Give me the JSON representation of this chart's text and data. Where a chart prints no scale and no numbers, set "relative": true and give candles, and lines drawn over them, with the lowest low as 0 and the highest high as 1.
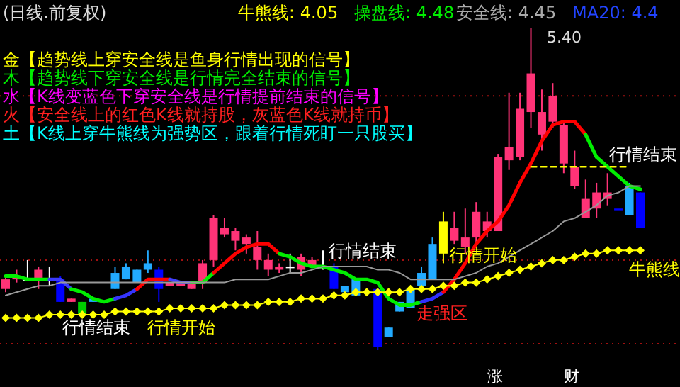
{
  "chart_data": {
    "type": "candlestick",
    "relative": true,
    "title": "(日线.前复权)",
    "categories": [
      null,
      null,
      null,
      null,
      null,
      null,
      null,
      null,
      null,
      null,
      null,
      null,
      null,
      null,
      null,
      null,
      null,
      null,
      null,
      null,
      null,
      null,
      null,
      null,
      null,
      null,
      null,
      null,
      null,
      null,
      null,
      null,
      null,
      null,
      null,
      null,
      null,
      null,
      null,
      null,
      null,
      null,
      null,
      null,
      null,
      null,
      null,
      null,
      null,
      null,
      null,
      null,
      null,
      null,
      null,
      null,
      null,
      null,
      null
    ],
    "ohlc": [
      [
        0.19,
        0.23,
        0.18,
        0.22
      ],
      [
        0.22,
        0.25,
        0.21,
        0.23
      ],
      [
        0.22,
        0.28,
        0.22,
        0.22
      ],
      [
        0.22,
        0.26,
        0.19,
        0.25
      ],
      [
        0.22,
        0.26,
        0.2,
        0.22
      ],
      [
        0.22,
        0.23,
        0.15,
        0.15
      ],
      [
        0.15,
        0.16,
        0.15,
        0.16
      ],
      [
        0.15,
        0.15,
        0.11,
        0.11
      ],
      [
        0.16,
        0.16,
        0.15,
        0.15
      ],
      null,
      [
        0.24,
        0.26,
        0.19,
        0.19
      ],
      [
        0.26,
        0.27,
        0.22,
        0.22
      ],
      [
        0.25,
        0.25,
        0.21,
        0.21
      ],
      [
        0.27,
        0.31,
        0.24,
        0.25
      ],
      [
        0.25,
        0.26,
        0.15,
        0.19
      ],
      [
        0.2,
        0.21,
        0.2,
        0.21
      ],
      [
        0.2,
        0.21,
        0.2,
        0.21
      ],
      [
        0.19,
        0.21,
        0.19,
        0.21
      ],
      [
        0.21,
        0.28,
        0.19,
        0.27
      ],
      [
        0.28,
        0.42,
        0.26,
        0.41
      ],
      [
        0.36,
        0.41,
        0.35,
        0.38
      ],
      [
        0.34,
        0.38,
        0.31,
        0.37
      ],
      [
        0.33,
        0.36,
        0.3,
        0.35
      ],
      [
        0.28,
        0.37,
        0.25,
        0.32
      ],
      [
        0.25,
        0.3,
        0.23,
        0.28
      ],
      [
        0.25,
        0.27,
        0.24,
        0.26
      ],
      [
        0.26,
        0.3,
        0.24,
        0.26
      ],
      [
        0.25,
        0.3,
        0.23,
        0.29
      ],
      [
        0.26,
        0.29,
        0.26,
        0.28
      ],
      [
        0.26,
        0.31,
        0.25,
        0.26
      ],
      [
        0.26,
        0.27,
        0.19,
        0.19
      ],
      [
        0.2,
        0.2,
        0.18,
        0.18
      ],
      [
        0.22,
        0.22,
        0.17,
        0.17
      ],
      null,
      [
        0.19,
        0.19,
        0.0,
        0.01
      ],
      [
        0.07,
        0.07,
        0.04,
        0.04
      ],
      [
        0.15,
        0.15,
        0.12,
        0.12
      ],
      [
        0.19,
        0.19,
        0.13,
        0.13
      ],
      [
        0.24,
        0.26,
        0.2,
        0.2
      ],
      [
        0.33,
        0.35,
        0.22,
        0.22
      ],
      [
        0.3,
        0.43,
        0.27,
        0.4
      ],
      [
        0.34,
        0.43,
        0.33,
        0.38
      ],
      [
        0.32,
        0.44,
        0.3,
        0.35
      ],
      [
        0.35,
        0.46,
        0.33,
        0.43
      ],
      [
        0.37,
        0.43,
        0.35,
        0.4
      ],
      [
        0.37,
        0.61,
        0.37,
        0.6
      ],
      [
        0.59,
        0.8,
        0.56,
        0.63
      ],
      [
        0.6,
        0.8,
        0.59,
        0.75
      ],
      [
        0.74,
        1.0,
        0.69,
        0.86
      ],
      [
        0.67,
        0.81,
        0.62,
        0.74
      ],
      [
        0.71,
        0.83,
        0.69,
        0.79
      ],
      [
        0.58,
        0.71,
        0.55,
        0.7
      ],
      [
        0.51,
        0.62,
        0.5,
        0.57
      ],
      [
        0.41,
        0.53,
        0.41,
        0.47
      ],
      [
        0.44,
        0.52,
        0.41,
        0.49
      ],
      [
        0.47,
        0.55,
        0.45,
        0.49
      ],
      [
        0.44,
        0.44,
        0.44,
        0.44
      ],
      [
        0.51,
        0.52,
        0.42,
        0.42
      ],
      [
        0.49,
        0.49,
        0.38,
        0.38
      ]
    ],
    "colors": [
      "#ff3377",
      "#ff3377",
      "#ffffff",
      "#ff3377",
      "#ffffff",
      "#0000ff",
      "#ff3377",
      "#00cc00",
      "#22aaff",
      null,
      "#22aaff",
      "#22aaff",
      "#22aaff",
      "#22aaff",
      "#0000ff",
      "#ff3377",
      "#ff3377",
      "#ff3377",
      "#ff3377",
      "#ff3377",
      "#ff3377",
      "#ff3377",
      "#ff3377",
      "#ff3377",
      "#ff3377",
      "#ff3377",
      "#ffffff",
      "#ff3377",
      "#ff3377",
      "#ffffff",
      "#0000ff",
      "#22aaff",
      "#22aaff",
      null,
      "#0000ff",
      "#22aaff",
      "#22aaff",
      "#22aaff",
      "#22aaff",
      "#22aaff",
      "#ffff00",
      "#ff3377",
      "#ff3377",
      "#ff3377",
      "#ff3377",
      "#ff3377",
      "#ff3377",
      "#ff3377",
      "#ff3377",
      "#ff3377",
      "#ff3377",
      "#ff3377",
      "#ff3377",
      "#ff3377",
      "#ff3377",
      "#ff3377",
      "#0000ff",
      "#22aaff",
      "#0000ff"
    ],
    "series": [
      {
        "type": "line",
        "color": "#00ee00",
        "values": [
          0.23,
          0.23,
          0.22,
          0.22,
          0.22,
          null,
          null,
          null,
          null,
          null,
          null,
          null,
          null,
          null,
          null,
          null,
          null,
          null,
          null,
          null,
          null,
          null,
          null,
          null,
          null,
          null,
          null,
          null,
          null,
          null,
          null,
          null,
          null,
          null,
          null,
          null,
          null,
          null,
          null,
          null,
          null,
          null,
          null,
          null,
          null,
          null,
          null,
          null,
          null,
          null,
          null,
          null,
          null,
          null,
          null,
          null,
          null,
          null,
          null
        ]
      },
      {
        "type": "line",
        "color": "#3a3aff",
        "values": [
          null,
          null,
          null,
          null,
          0.22,
          0.22,
          0.19,
          null,
          null,
          null,
          null,
          null,
          null,
          null,
          null,
          null,
          null,
          null,
          null,
          null,
          null,
          null,
          null,
          null,
          null,
          null,
          null,
          null,
          null,
          null,
          null,
          null,
          null,
          null,
          null,
          null,
          null,
          null,
          null,
          null,
          null,
          null,
          null,
          null,
          null,
          null,
          null,
          null,
          null,
          null,
          null,
          null,
          null,
          null,
          null,
          null,
          null,
          null,
          null
        ]
      },
      {
        "type": "line",
        "color": "#00ee00",
        "values": [
          null,
          null,
          null,
          null,
          null,
          null,
          0.19,
          0.18,
          0.16,
          0.15,
          0.16,
          null,
          null,
          null,
          null,
          null,
          null,
          null,
          null,
          null,
          null,
          null,
          null,
          null,
          null,
          null,
          null,
          null,
          null,
          null,
          null,
          null,
          null,
          null,
          null,
          null,
          null,
          null,
          null,
          null,
          null,
          null,
          null,
          null,
          null,
          null,
          null,
          null,
          null,
          null,
          null,
          null,
          null,
          null,
          null,
          null,
          null,
          null,
          null
        ]
      },
      {
        "type": "line",
        "color": "#3535ff",
        "values": [
          null,
          null,
          null,
          null,
          null,
          null,
          null,
          null,
          null,
          null,
          0.16,
          0.17,
          0.19,
          null,
          null,
          null,
          null,
          null,
          null,
          null,
          null,
          null,
          null,
          null,
          null,
          null,
          null,
          null,
          null,
          null,
          null,
          null,
          null,
          null,
          null,
          null,
          null,
          null,
          null,
          null,
          null,
          null,
          null,
          null,
          null,
          null,
          null,
          null,
          null,
          null,
          null,
          null,
          null,
          null,
          null,
          null,
          null,
          null,
          null
        ]
      },
      {
        "type": "line",
        "color": "#ff0000",
        "values": [
          null,
          null,
          null,
          null,
          null,
          null,
          null,
          null,
          null,
          null,
          null,
          null,
          0.19,
          0.22,
          0.22,
          0.22,
          null,
          null,
          null,
          null,
          null,
          null,
          null,
          null,
          null,
          null,
          null,
          null,
          null,
          null,
          null,
          null,
          null,
          null,
          null,
          null,
          null,
          null,
          null,
          null,
          null,
          null,
          null,
          null,
          null,
          null,
          null,
          null,
          null,
          null,
          null,
          null,
          null,
          null,
          null,
          null,
          null,
          null,
          null
        ]
      },
      {
        "type": "line",
        "color": "#4040ff",
        "values": [
          null,
          null,
          null,
          null,
          null,
          null,
          null,
          null,
          null,
          null,
          null,
          null,
          null,
          null,
          null,
          0.22,
          0.21,
          0.21,
          null,
          null,
          null,
          null,
          null,
          null,
          null,
          null,
          null,
          null,
          null,
          null,
          null,
          null,
          null,
          null,
          null,
          null,
          null,
          null,
          null,
          null,
          null,
          null,
          null,
          null,
          null,
          null,
          null,
          null,
          null,
          null,
          null,
          null,
          null,
          null,
          null,
          null,
          null,
          null,
          null
        ]
      },
      {
        "type": "line",
        "color": "#00ee00",
        "values": [
          null,
          null,
          null,
          null,
          null,
          null,
          null,
          null,
          null,
          null,
          null,
          null,
          null,
          null,
          null,
          null,
          null,
          0.21,
          0.21,
          0.24,
          null,
          null,
          null,
          null,
          null,
          null,
          null,
          null,
          null,
          null,
          null,
          null,
          null,
          null,
          null,
          null,
          null,
          null,
          null,
          null,
          null,
          null,
          null,
          null,
          null,
          null,
          null,
          null,
          null,
          null,
          null,
          null,
          null,
          null,
          null,
          null,
          null,
          null,
          null
        ]
      },
      {
        "type": "line",
        "color": "#ff0000",
        "values": [
          null,
          null,
          null,
          null,
          null,
          null,
          null,
          null,
          null,
          null,
          null,
          null,
          null,
          null,
          null,
          null,
          null,
          null,
          null,
          0.24,
          0.27,
          0.3,
          0.32,
          0.33,
          0.33,
          0.3,
          null,
          null,
          null,
          null,
          null,
          null,
          null,
          null,
          null,
          null,
          null,
          null,
          null,
          null,
          null,
          null,
          null,
          null,
          null,
          null,
          null,
          null,
          null,
          null,
          null,
          null,
          null,
          null,
          null,
          null,
          null,
          null,
          null
        ]
      },
      {
        "type": "line",
        "color": "#00ee00",
        "values": [
          null,
          null,
          null,
          null,
          null,
          null,
          null,
          null,
          null,
          null,
          null,
          null,
          null,
          null,
          null,
          null,
          null,
          null,
          null,
          null,
          null,
          null,
          null,
          null,
          null,
          0.3,
          0.29,
          0.27,
          0.26,
          0.26,
          0.25,
          0.24,
          0.22,
          0.22,
          0.21,
          0.16,
          0.14,
          0.14,
          0.15,
          null,
          null,
          null,
          null,
          null,
          null,
          null,
          null,
          null,
          null,
          null,
          null,
          null,
          null,
          null,
          null,
          null,
          null,
          null,
          null
        ]
      },
      {
        "type": "line",
        "color": "#3030ff",
        "values": [
          null,
          null,
          null,
          null,
          null,
          null,
          null,
          null,
          null,
          null,
          null,
          null,
          null,
          null,
          null,
          null,
          null,
          null,
          null,
          null,
          null,
          null,
          null,
          null,
          null,
          null,
          null,
          null,
          null,
          null,
          null,
          null,
          null,
          null,
          null,
          null,
          null,
          null,
          0.15,
          0.16,
          0.18,
          null,
          null,
          null,
          null,
          null,
          null,
          null,
          null,
          null,
          null,
          null,
          null,
          null,
          null,
          null,
          null,
          null,
          null
        ]
      },
      {
        "type": "line",
        "color": "#ff0000",
        "values": [
          null,
          null,
          null,
          null,
          null,
          null,
          null,
          null,
          null,
          null,
          null,
          null,
          null,
          null,
          null,
          null,
          null,
          null,
          null,
          null,
          null,
          null,
          null,
          null,
          null,
          null,
          null,
          null,
          null,
          null,
          null,
          null,
          null,
          null,
          null,
          null,
          null,
          null,
          null,
          null,
          0.18,
          0.22,
          0.27,
          0.33,
          0.37,
          0.4,
          0.45,
          0.52,
          0.58,
          0.65,
          0.7,
          0.71,
          0.71,
          0.67,
          null,
          null,
          null,
          null,
          null
        ]
      },
      {
        "type": "line",
        "color": "#00ee00",
        "values": [
          null,
          null,
          null,
          null,
          null,
          null,
          null,
          null,
          null,
          null,
          null,
          null,
          null,
          null,
          null,
          null,
          null,
          null,
          null,
          null,
          null,
          null,
          null,
          null,
          null,
          null,
          null,
          null,
          null,
          null,
          null,
          null,
          null,
          null,
          null,
          null,
          null,
          null,
          null,
          null,
          null,
          null,
          null,
          null,
          null,
          null,
          null,
          null,
          null,
          null,
          null,
          null,
          null,
          0.67,
          0.6,
          0.57,
          0.54,
          0.51,
          0.5
        ]
      },
      {
        "type": "line",
        "color": "#999999",
        "values": [
          0.17,
          0.18,
          0.19,
          0.2,
          0.2,
          0.21,
          0.21,
          0.21,
          0.21,
          0.21,
          0.21,
          0.21,
          0.21,
          0.21,
          0.21,
          0.21,
          0.21,
          0.21,
          0.21,
          0.21,
          0.21,
          0.22,
          0.22,
          0.22,
          0.22,
          0.23,
          0.24,
          0.24,
          0.25,
          0.26,
          0.26,
          0.26,
          0.26,
          0.26,
          0.25,
          0.25,
          0.24,
          0.22,
          0.22,
          0.22,
          0.22,
          0.22,
          0.23,
          0.24,
          0.26,
          0.27,
          0.29,
          0.31,
          0.33,
          0.35,
          0.37,
          0.4,
          0.41,
          0.43,
          0.45,
          0.48,
          0.49,
          0.51,
          0.51
        ]
      },
      {
        "type": "line",
        "color": "#ffff00",
        "marker": "diamond",
        "values": [
          0.1,
          0.1,
          0.1,
          0.1,
          0.11,
          0.11,
          0.11,
          0.11,
          0.11,
          0.11,
          0.12,
          0.12,
          0.12,
          0.12,
          0.12,
          0.13,
          0.13,
          0.13,
          0.13,
          0.13,
          0.14,
          0.14,
          0.14,
          0.14,
          0.15,
          0.15,
          0.15,
          0.16,
          0.16,
          0.16,
          0.17,
          0.17,
          0.18,
          0.18,
          0.18,
          0.18,
          0.18,
          0.19,
          0.19,
          0.19,
          0.2,
          0.2,
          0.21,
          0.21,
          0.22,
          0.23,
          0.24,
          0.25,
          0.26,
          0.27,
          0.28,
          0.28,
          0.29,
          0.3,
          0.3,
          0.31,
          0.31,
          0.31,
          0.31
        ]
      },
      {
        "type": "line",
        "color": "#ffff00",
        "line_style": "dashed",
        "values": [
          null,
          null,
          null,
          null,
          null,
          null,
          null,
          null,
          null,
          null,
          null,
          null,
          null,
          null,
          null,
          null,
          null,
          null,
          null,
          null,
          null,
          null,
          null,
          null,
          null,
          null,
          null,
          null,
          null,
          null,
          null,
          null,
          null,
          null,
          null,
          null,
          null,
          null,
          null,
          null,
          null,
          null,
          null,
          null,
          null,
          null,
          null,
          null,
          0.57,
          0.57,
          0.57,
          0.57,
          0.57,
          0.57,
          0.57,
          0.57,
          0.57,
          0.57,
          null
        ]
      }
    ],
    "ref_lines": [
      {
        "axis": "y",
        "value": 0.79,
        "color": "#a01010",
        "line_style": "dotted"
      },
      {
        "axis": "y",
        "value": 0.28,
        "color": "#a01010",
        "line_style": "dotted"
      },
      {
        "axis": "y",
        "value": 0.02,
        "color": "#a01010",
        "line_style": "dotted"
      }
    ],
    "annotations": [
      "牛熊线: 4.05",
      "操盘线: 4.48",
      "安全线: 4.45",
      "MA20: 4.4",
      "金【趋势线上穿安全线是鱼身行情出现的信号】",
      "木【趋势线下穿安全线是行情完全结束的信号】",
      "水【K线变蓝色下穿安全线是行情提前结束的信号】",
      "火【安全线上的红色K线就持股，灰蓝色K线就持币】",
      "土【K线上穿牛熊线为强势区，跟着行情死盯一只股买】",
      "5.40",
      "行情结束",
      "行情开始",
      "行情结束",
      "走强区",
      "行情开始",
      "行情结束",
      "牛熊线",
      "涨",
      "财"
    ]
  }
}
